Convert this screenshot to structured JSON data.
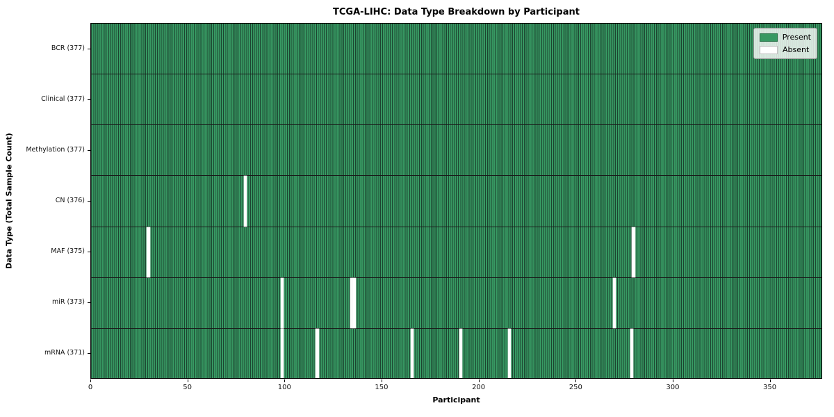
{
  "chart_data": {
    "type": "heatmap",
    "title": "TCGA-LIHC: Data Type Breakdown by Participant",
    "xlabel": "Participant",
    "ylabel": "Data Type (Total Sample Count)",
    "x_ticks": [
      0,
      50,
      100,
      150,
      200,
      250,
      300,
      350
    ],
    "x_max": 377,
    "total_participants": 377,
    "grid": "cell-edges",
    "legend_position": "upper-right",
    "legend": [
      {
        "label": "Present",
        "color": "#379862"
      },
      {
        "label": "Absent",
        "color": "#ffffff"
      }
    ],
    "colors": {
      "present_fill": "#379862",
      "cell_edge": "#1c4430",
      "row_separator": "#1a1a1a",
      "absent_fill": "#ffffff",
      "plot_border": "#000000",
      "figure_background": "#ffffff"
    },
    "rows": [
      {
        "name": "BCR",
        "label": "BCR (377)",
        "present_count": 377,
        "absent_participants": []
      },
      {
        "name": "Clinical",
        "label": "Clinical (377)",
        "present_count": 377,
        "absent_participants": []
      },
      {
        "name": "Methylation",
        "label": "Methylation (377)",
        "present_count": 377,
        "absent_participants": []
      },
      {
        "name": "CN",
        "label": "CN (376)",
        "present_count": 376,
        "absent_participants": [
          79
        ]
      },
      {
        "name": "MAF",
        "label": "MAF (375)",
        "present_count": 375,
        "absent_participants": [
          29,
          279
        ]
      },
      {
        "name": "miR",
        "label": "miR (373)",
        "present_count": 373,
        "absent_participants": [
          98,
          134,
          135,
          269
        ]
      },
      {
        "name": "mRNA",
        "label": "mRNA (371)",
        "present_count": 371,
        "absent_participants": [
          98,
          116,
          165,
          190,
          215,
          278
        ]
      }
    ]
  }
}
